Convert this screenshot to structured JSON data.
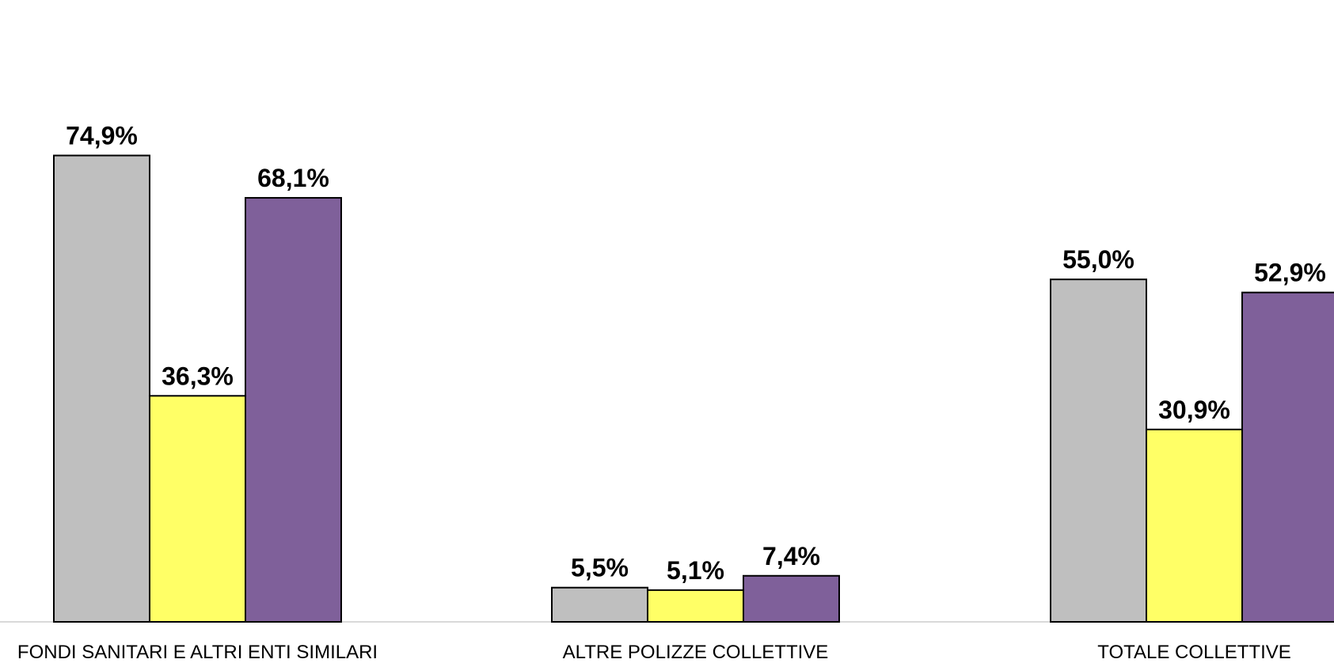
{
  "chart_data": {
    "type": "bar",
    "categories": [
      "FONDI SANITARI E ALTRI ENTI SIMILARI",
      "ALTRE POLIZZE COLLETTIVE",
      "TOTALE COLLETTIVE"
    ],
    "series": [
      {
        "values": [
          74.9,
          5.5,
          55.0
        ],
        "labels": [
          "74,9%",
          "5,5%",
          "55,0%"
        ],
        "color": "#bfbfbf"
      },
      {
        "values": [
          36.3,
          5.1,
          30.9
        ],
        "labels": [
          "36,3%",
          "5,1%",
          "30,9%"
        ],
        "color": "#ffff66"
      },
      {
        "values": [
          68.1,
          7.4,
          52.9
        ],
        "labels": [
          "68,1%",
          "7,4%",
          "52,9%"
        ],
        "color": "#7f609a"
      }
    ],
    "ylim": [
      0,
      80
    ],
    "unit": "%",
    "grid": false,
    "legend": "none",
    "title": "",
    "xlabel": "",
    "ylabel": ""
  }
}
